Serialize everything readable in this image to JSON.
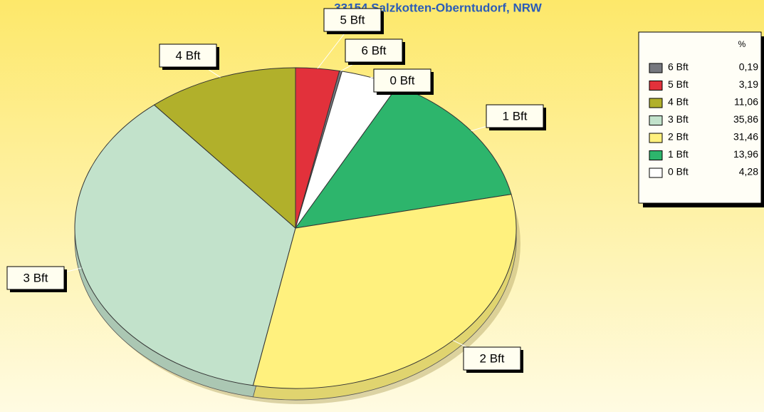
{
  "chart_data": {
    "type": "pie",
    "title": "33154 Salzkotten-Oberntudorf, NRW",
    "legend_header": "%",
    "categories": [
      "6 Bft",
      "5 Bft",
      "4 Bft",
      "3 Bft",
      "2 Bft",
      "1 Bft",
      "0 Bft"
    ],
    "values": [
      0.19,
      3.19,
      11.06,
      35.86,
      31.46,
      13.96,
      4.28
    ],
    "value_labels": [
      "0,19",
      "3,19",
      "11,06",
      "35,86",
      "31,46",
      "13,96",
      "4,28"
    ],
    "colors": [
      "#76787f",
      "#e2313b",
      "#b1b02b",
      "#c2e2cb",
      "#fff17e",
      "#2db56c",
      "#ffffff"
    ],
    "legend": "right"
  }
}
